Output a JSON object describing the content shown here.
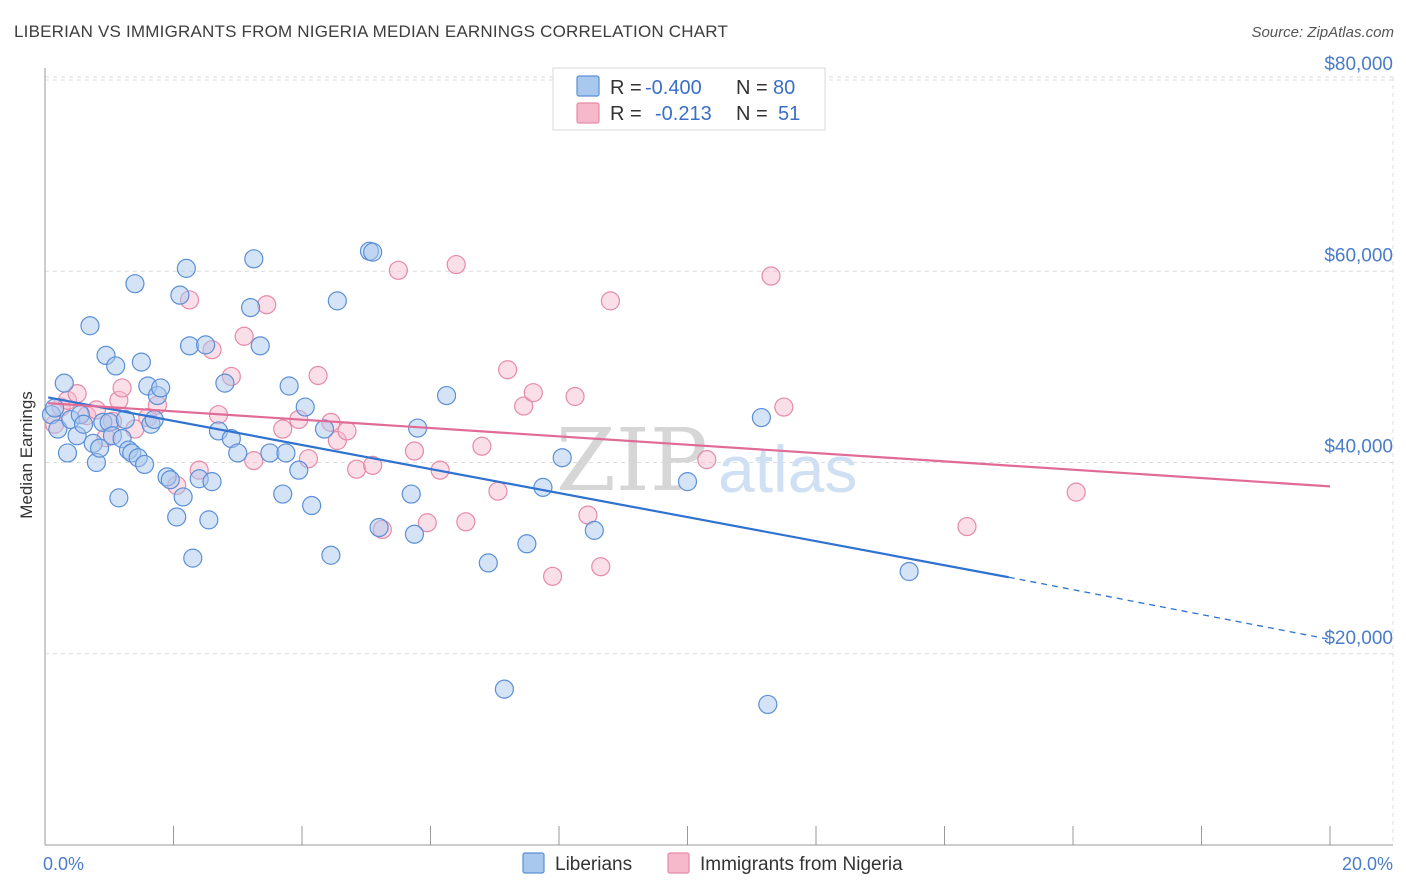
{
  "title": "LIBERIAN VS IMMIGRANTS FROM NIGERIA MEDIAN EARNINGS CORRELATION CHART",
  "source": "Source: ZipAtlas.com",
  "watermark": {
    "part1": "ZIP",
    "part2": "atlas"
  },
  "colors": {
    "blue_fill": "#a9c8ee",
    "blue_stroke": "#5b8fd6",
    "blue_line": "#2f72d0",
    "pink_fill": "#f6b9cc",
    "pink_stroke": "#e58aa8",
    "pink_line": "#e06b96",
    "grid": "#dcdcdc",
    "axis_text": "#4a7cc9"
  },
  "legend": {
    "row1": {
      "r_label": "R =",
      "r_value": "-0.400",
      "n_label": "N =",
      "n_value": "80"
    },
    "row2": {
      "r_label": "R =",
      "r_value": "-0.213",
      "n_label": "N =",
      "n_value": "51"
    }
  },
  "bottom_legend": {
    "series1": "Liberians",
    "series2": "Immigrants from Nigeria"
  },
  "chart_data": {
    "type": "scatter",
    "title": "LIBERIAN VS IMMIGRANTS FROM NIGERIA MEDIAN EARNINGS CORRELATION CHART",
    "xlabel": "",
    "ylabel": "Median Earnings",
    "xlim": [
      0,
      20
    ],
    "ylim": [
      0,
      84000
    ],
    "x_tick_labels": [
      "0.0%",
      "20.0%"
    ],
    "y_ticks": [
      20000,
      40000,
      60000,
      80000
    ],
    "y_tick_labels": [
      "$20,000",
      "$40,000",
      "$60,000",
      "$80,000"
    ],
    "grid": true,
    "legend_position": "top-center",
    "series": [
      {
        "name": "Liberians",
        "color": "#a9c8ee",
        "R": -0.4,
        "N": 80,
        "trend": {
          "x_start": 0.05,
          "y_start": 46800,
          "x_end": 15.0,
          "y_end": 28000,
          "dashed_to_x": 20.0,
          "dashed_to_y": 21500
        },
        "points": [
          [
            0.1,
            45000
          ],
          [
            0.15,
            45700
          ],
          [
            0.2,
            43500
          ],
          [
            0.3,
            48300
          ],
          [
            0.35,
            41000
          ],
          [
            0.4,
            44500
          ],
          [
            0.5,
            42800
          ],
          [
            0.55,
            45000
          ],
          [
            0.6,
            44000
          ],
          [
            0.7,
            54300
          ],
          [
            0.75,
            42000
          ],
          [
            0.8,
            40000
          ],
          [
            0.85,
            41500
          ],
          [
            0.9,
            44200
          ],
          [
            0.95,
            51200
          ],
          [
            1.0,
            44200
          ],
          [
            1.05,
            42800
          ],
          [
            1.1,
            50100
          ],
          [
            1.15,
            36300
          ],
          [
            1.2,
            42500
          ],
          [
            1.25,
            44500
          ],
          [
            1.3,
            41300
          ],
          [
            1.35,
            41000
          ],
          [
            1.4,
            58700
          ],
          [
            1.45,
            40500
          ],
          [
            1.5,
            50500
          ],
          [
            1.55,
            39800
          ],
          [
            1.6,
            48000
          ],
          [
            1.65,
            44000
          ],
          [
            1.7,
            44500
          ],
          [
            1.75,
            47000
          ],
          [
            1.8,
            47800
          ],
          [
            1.9,
            38500
          ],
          [
            1.95,
            38200
          ],
          [
            2.05,
            34300
          ],
          [
            2.1,
            57500
          ],
          [
            2.15,
            36400
          ],
          [
            2.2,
            60300
          ],
          [
            2.25,
            52200
          ],
          [
            2.3,
            30000
          ],
          [
            2.4,
            38300
          ],
          [
            2.5,
            52300
          ],
          [
            2.55,
            34000
          ],
          [
            2.6,
            38000
          ],
          [
            2.7,
            43300
          ],
          [
            2.8,
            48300
          ],
          [
            2.9,
            42500
          ],
          [
            3.0,
            41000
          ],
          [
            3.2,
            56200
          ],
          [
            3.25,
            61300
          ],
          [
            3.35,
            52200
          ],
          [
            3.5,
            41000
          ],
          [
            3.7,
            36700
          ],
          [
            3.75,
            41000
          ],
          [
            3.8,
            48000
          ],
          [
            3.95,
            39200
          ],
          [
            4.05,
            45800
          ],
          [
            4.15,
            35500
          ],
          [
            4.35,
            43500
          ],
          [
            4.45,
            30300
          ],
          [
            4.55,
            56900
          ],
          [
            5.05,
            62100
          ],
          [
            5.1,
            62000
          ],
          [
            5.2,
            33200
          ],
          [
            5.7,
            36700
          ],
          [
            5.75,
            32500
          ],
          [
            5.8,
            43600
          ],
          [
            6.25,
            47000
          ],
          [
            6.9,
            29500
          ],
          [
            7.15,
            16300
          ],
          [
            7.5,
            31500
          ],
          [
            7.75,
            37400
          ],
          [
            8.05,
            40500
          ],
          [
            8.55,
            32900
          ],
          [
            10.0,
            38000
          ],
          [
            11.15,
            44700
          ],
          [
            11.25,
            14700
          ],
          [
            13.45,
            28600
          ]
        ]
      },
      {
        "name": "Immigrants from Nigeria",
        "color": "#f6b9cc",
        "R": -0.213,
        "N": 51,
        "trend": {
          "x_start": 0.05,
          "y_start": 46200,
          "x_end": 20.0,
          "y_end": 37500
        },
        "points": [
          [
            0.15,
            44000
          ],
          [
            0.25,
            45800
          ],
          [
            0.35,
            46500
          ],
          [
            0.5,
            47200
          ],
          [
            0.65,
            44900
          ],
          [
            0.8,
            45500
          ],
          [
            0.95,
            42600
          ],
          [
            1.05,
            44300
          ],
          [
            1.15,
            46500
          ],
          [
            1.2,
            47800
          ],
          [
            1.4,
            43500
          ],
          [
            1.6,
            44700
          ],
          [
            1.75,
            46000
          ],
          [
            2.05,
            37600
          ],
          [
            2.25,
            57000
          ],
          [
            2.4,
            39200
          ],
          [
            2.6,
            51800
          ],
          [
            2.7,
            45000
          ],
          [
            2.9,
            49000
          ],
          [
            3.1,
            53200
          ],
          [
            3.25,
            40200
          ],
          [
            3.45,
            56500
          ],
          [
            3.7,
            43500
          ],
          [
            3.95,
            44500
          ],
          [
            4.1,
            40400
          ],
          [
            4.25,
            49100
          ],
          [
            4.45,
            44200
          ],
          [
            4.55,
            42300
          ],
          [
            4.7,
            43300
          ],
          [
            4.85,
            39300
          ],
          [
            5.1,
            39700
          ],
          [
            5.25,
            33000
          ],
          [
            5.5,
            60100
          ],
          [
            5.75,
            41200
          ],
          [
            5.95,
            33700
          ],
          [
            6.15,
            39200
          ],
          [
            6.4,
            60700
          ],
          [
            6.55,
            33800
          ],
          [
            6.8,
            41700
          ],
          [
            7.05,
            37000
          ],
          [
            7.2,
            49700
          ],
          [
            7.45,
            45900
          ],
          [
            7.6,
            47300
          ],
          [
            7.9,
            28100
          ],
          [
            8.25,
            46900
          ],
          [
            8.45,
            34500
          ],
          [
            8.65,
            29100
          ],
          [
            8.8,
            56900
          ],
          [
            10.3,
            40300
          ],
          [
            11.3,
            59500
          ],
          [
            11.5,
            45800
          ],
          [
            14.35,
            33300
          ],
          [
            16.05,
            36900
          ]
        ]
      }
    ]
  }
}
